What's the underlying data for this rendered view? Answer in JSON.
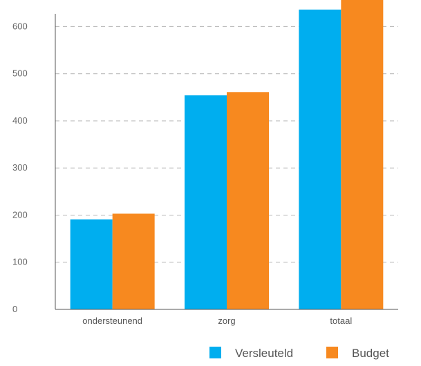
{
  "chart_data": {
    "type": "bar",
    "title": "",
    "xlabel": "",
    "ylabel": "",
    "categories": [
      "ondersteunend",
      "zorg",
      "totaal"
    ],
    "series": [
      {
        "name": "Versleuteld",
        "color": "#00aeef",
        "values": [
          191,
          454,
          636
        ]
      },
      {
        "name": "Budget",
        "color": "#f7891f",
        "values": [
          203,
          461,
          664
        ]
      }
    ],
    "ylim": [
      0,
      627
    ],
    "yticks": [
      0,
      100,
      200,
      300,
      400,
      500,
      600
    ],
    "grid": true,
    "legend_position": "bottom-right"
  }
}
